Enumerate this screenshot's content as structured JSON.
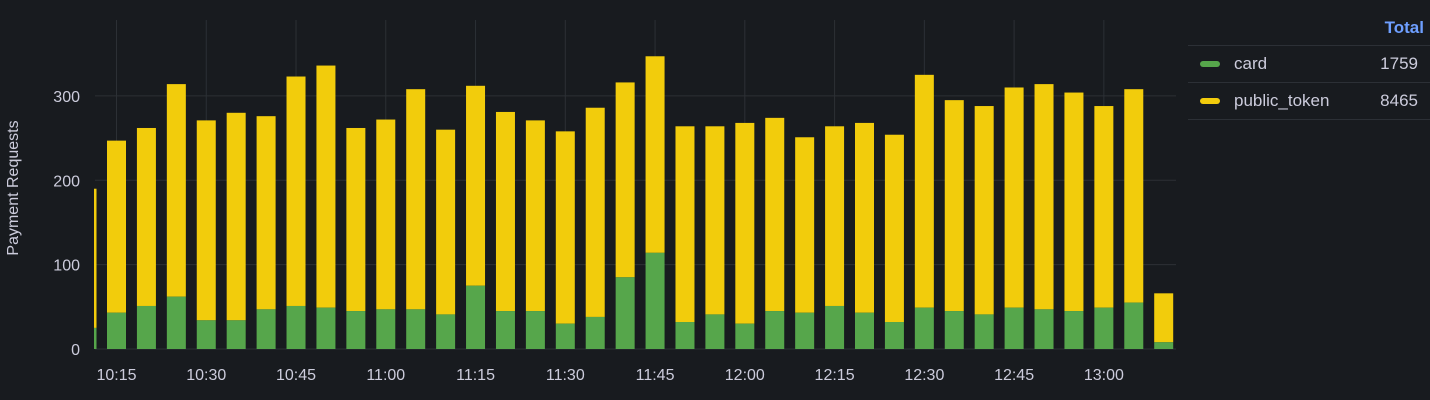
{
  "legend": {
    "header": "Total",
    "items": [
      {
        "name": "card",
        "total": "1759",
        "color": "#56a64b"
      },
      {
        "name": "public_token",
        "total": "8465",
        "color": "#f2cc0c"
      }
    ]
  },
  "chart_data": {
    "type": "bar",
    "stacked": true,
    "ylabel": "Payment Requests",
    "xlabel": "",
    "ylim": [
      0,
      390
    ],
    "yticks": [
      0,
      100,
      200,
      300
    ],
    "xticks": [
      "10:15",
      "10:30",
      "10:45",
      "11:00",
      "11:15",
      "11:30",
      "11:45",
      "12:00",
      "12:15",
      "12:30",
      "12:45",
      "13:00"
    ],
    "partial_first_bar": {
      "card": 25,
      "public_token": 165
    },
    "categories": [
      "10:15",
      "10:20",
      "10:25",
      "10:30",
      "10:35",
      "10:40",
      "10:45",
      "10:50",
      "10:55",
      "11:00",
      "11:05",
      "11:10",
      "11:15",
      "11:20",
      "11:25",
      "11:30",
      "11:35",
      "11:40",
      "11:45",
      "11:50",
      "11:55",
      "12:00",
      "12:05",
      "12:10",
      "12:15",
      "12:20",
      "12:25",
      "12:30",
      "12:35",
      "12:40",
      "12:45",
      "12:50",
      "12:55",
      "13:00",
      "13:05",
      "13:10"
    ],
    "series": [
      {
        "name": "card",
        "color": "#56a64b",
        "values": [
          43,
          51,
          62,
          34,
          34,
          47,
          51,
          49,
          45,
          47,
          47,
          41,
          75,
          45,
          45,
          30,
          38,
          85,
          114,
          32,
          41,
          30,
          45,
          43,
          51,
          43,
          32,
          49,
          45,
          41,
          49,
          47,
          45,
          49,
          55,
          8
        ]
      },
      {
        "name": "public_token",
        "color": "#f2cc0c",
        "values": [
          204,
          211,
          252,
          237,
          246,
          229,
          272,
          287,
          217,
          225,
          261,
          219,
          237,
          236,
          226,
          228,
          248,
          231,
          233,
          232,
          223,
          238,
          229,
          208,
          213,
          225,
          222,
          276,
          250,
          247,
          261,
          267,
          259,
          239,
          253,
          58
        ]
      }
    ],
    "grid": true,
    "legend_position": "right"
  }
}
